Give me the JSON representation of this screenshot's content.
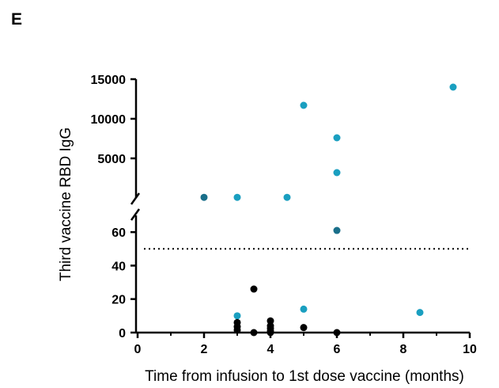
{
  "panel_label": "E",
  "chart_data": {
    "type": "scatter",
    "title": "",
    "xlabel": "Time from infusion to 1st dose vaccine (months)",
    "ylabel": "Third vaccine RBD IgG",
    "xlim": [
      0,
      10
    ],
    "xticks": [
      "0",
      "2",
      "4",
      "6",
      "8",
      "10"
    ],
    "y_axis_broken": true,
    "ylim_lower": [
      0,
      70
    ],
    "ylim_upper": [
      0,
      15000
    ],
    "yticks_lower": [
      "0",
      "20",
      "40",
      "60"
    ],
    "yticks_upper": [
      "5000",
      "10000",
      "15000"
    ],
    "threshold_y": 50,
    "colors": {
      "teal": "#1a9fc0",
      "dark_teal": "#1a6f8a",
      "black": "#000000"
    },
    "points": [
      {
        "x": 9.5,
        "y": 14000,
        "color": "teal"
      },
      {
        "x": 5,
        "y": 11700,
        "color": "teal"
      },
      {
        "x": 6,
        "y": 7600,
        "color": "teal"
      },
      {
        "x": 6,
        "y": 3200,
        "color": "teal"
      },
      {
        "x": 2,
        "y": 80,
        "color": "dark_teal"
      },
      {
        "x": 3,
        "y": 80,
        "color": "teal"
      },
      {
        "x": 4.5,
        "y": 78,
        "color": "teal"
      },
      {
        "x": 6,
        "y": 61,
        "color": "dark_teal"
      },
      {
        "x": 3,
        "y": 10,
        "color": "teal"
      },
      {
        "x": 5,
        "y": 14,
        "color": "teal"
      },
      {
        "x": 8.5,
        "y": 12,
        "color": "teal"
      },
      {
        "x": 3.5,
        "y": 26,
        "color": "black"
      },
      {
        "x": 3,
        "y": 6,
        "color": "black"
      },
      {
        "x": 3,
        "y": 3.5,
        "color": "black"
      },
      {
        "x": 3,
        "y": 1.5,
        "color": "black"
      },
      {
        "x": 3.5,
        "y": 0,
        "color": "black"
      },
      {
        "x": 4,
        "y": 7,
        "color": "black"
      },
      {
        "x": 4,
        "y": 4,
        "color": "black"
      },
      {
        "x": 4,
        "y": 2.5,
        "color": "black"
      },
      {
        "x": 4,
        "y": 1,
        "color": "black"
      },
      {
        "x": 4,
        "y": 0,
        "color": "black"
      },
      {
        "x": 5,
        "y": 3,
        "color": "black"
      },
      {
        "x": 6,
        "y": 0,
        "color": "black"
      }
    ]
  }
}
